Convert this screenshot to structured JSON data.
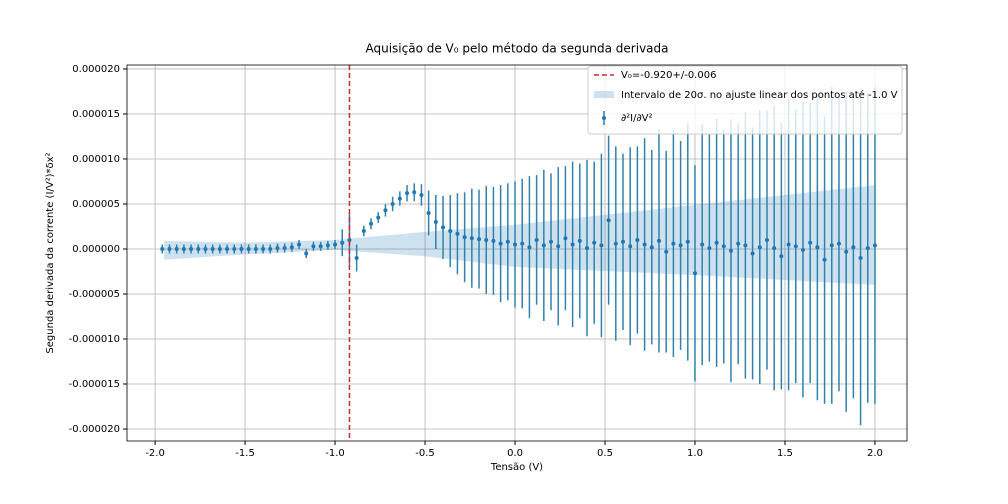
{
  "chart_data": {
    "type": "errorbar",
    "title": "Aquisição de V₀ pelo método da segunda derivada",
    "xlabel": "Tensão (V)",
    "ylabel": "Segunda derivada da corrente (I/V²)*δx²",
    "x": [
      -1.96,
      -1.92,
      -1.88,
      -1.84,
      -1.8,
      -1.76,
      -1.72,
      -1.68,
      -1.64,
      -1.6,
      -1.56,
      -1.52,
      -1.48,
      -1.44,
      -1.4,
      -1.36,
      -1.32,
      -1.28,
      -1.24,
      -1.2,
      -1.16,
      -1.12,
      -1.08,
      -1.04,
      -1.0,
      -0.96,
      -0.92,
      -0.88,
      -0.84,
      -0.8,
      -0.76,
      -0.72,
      -0.68,
      -0.64,
      -0.6,
      -0.56,
      -0.52,
      -0.48,
      -0.44,
      -0.4,
      -0.36,
      -0.32,
      -0.28,
      -0.24,
      -0.2,
      -0.16,
      -0.12,
      -0.08,
      -0.04,
      0.0,
      0.04,
      0.08,
      0.12,
      0.16,
      0.2,
      0.24,
      0.28,
      0.32,
      0.36,
      0.4,
      0.44,
      0.48,
      0.52,
      0.56,
      0.6,
      0.64,
      0.68,
      0.72,
      0.76,
      0.8,
      0.84,
      0.88,
      0.92,
      0.96,
      1.0,
      1.04,
      1.08,
      1.12,
      1.16,
      1.2,
      1.24,
      1.28,
      1.32,
      1.36,
      1.4,
      1.44,
      1.48,
      1.52,
      1.56,
      1.6,
      1.64,
      1.68,
      1.72,
      1.76,
      1.8,
      1.84,
      1.88,
      1.92,
      1.96,
      2.0
    ],
    "series": [
      {
        "name": "∂²I/∂V²",
        "color": "#1f77b4",
        "errcolor": "#2f82ad",
        "values": [
          0,
          0,
          0,
          0,
          0,
          0,
          0,
          0,
          0,
          0,
          0,
          0,
          0,
          0,
          0,
          0,
          1e-07,
          1e-07,
          2e-07,
          5e-07,
          -5e-07,
          3e-07,
          3e-07,
          4e-07,
          5e-07,
          7e-07,
          1e-06,
          -1e-06,
          2e-06,
          2.8e-06,
          3.5e-06,
          4.3e-06,
          5e-06,
          5.6e-06,
          6.2e-06,
          6.3e-06,
          6e-06,
          4e-06,
          3e-06,
          2.4e-06,
          2e-06,
          1.7e-06,
          1.3e-06,
          1.2e-06,
          1.1e-06,
          1e-06,
          9e-07,
          6e-07,
          8e-07,
          5e-07,
          6e-07,
          2e-07,
          1e-06,
          4e-07,
          8e-07,
          3e-07,
          1.2e-06,
          5e-07,
          9e-07,
          1e-07,
          7e-07,
          4e-07,
          3.2e-06,
          6e-07,
          8e-07,
          3e-07,
          1e-06,
          5e-07,
          2e-07,
          9e-07,
          -3e-07,
          6e-07,
          4e-07,
          8e-07,
          -2.7e-06,
          5e-07,
          1e-07,
          7e-07,
          3e-07,
          -2e-07,
          6e-07,
          4e-07,
          -5e-07,
          2e-07,
          1e-06,
          1e-07,
          -8e-07,
          5e-07,
          3e-07,
          -1e-07,
          7e-07,
          2e-07,
          -1.2e-06,
          4e-07,
          6e-07,
          -3e-07,
          2e-07,
          -1e-06,
          1e-07,
          4e-07
        ],
        "errors": [
          5e-07,
          5e-07,
          5e-07,
          5e-07,
          5e-07,
          5e-07,
          5e-07,
          5e-07,
          5e-07,
          5e-07,
          5e-07,
          5e-07,
          5e-07,
          5e-07,
          5e-07,
          5e-07,
          5e-07,
          5e-07,
          5e-07,
          5e-07,
          5e-07,
          5e-07,
          5e-07,
          5e-07,
          5e-07,
          1.5e-06,
          3e-06,
          1.5e-06,
          6e-07,
          6e-07,
          6e-07,
          7e-07,
          8e-07,
          8e-07,
          9e-07,
          1e-06,
          1.2e-06,
          2.5e-06,
          3e-06,
          3.5e-06,
          4e-06,
          4.5e-06,
          5e-06,
          5.5e-06,
          5.5e-06,
          6e-06,
          6e-06,
          6.5e-06,
          6.5e-06,
          7e-06,
          7.2e-06,
          7.9e-06,
          7.2e-06,
          8.4e-06,
          7.6e-06,
          8.8e-06,
          8e-06,
          9.2e-06,
          8.6e-06,
          9.8e-06,
          9e-06,
          1.02e-05,
          9.4e-06,
          1.08e-05,
          9.8e-06,
          1.1e-05,
          1.04e-05,
          1.18e-05,
          1.08e-05,
          1.24e-05,
          1.12e-05,
          1.26e-05,
          1.16e-05,
          1.32e-05,
          1.2e-05,
          1.34e-05,
          1.26e-05,
          1.38e-05,
          1.3e-05,
          1.46e-05,
          1.34e-05,
          1.48e-05,
          1.4e-05,
          1.52e-05,
          1.44e-05,
          1.58e-05,
          1.48e-05,
          1.62e-05,
          1.52e-05,
          1.64e-05,
          1.56e-05,
          1.7e-05,
          1.6e-05,
          1.76e-05,
          1.64e-05,
          1.78e-05,
          1.68e-05,
          1.86e-05,
          1.72e-05,
          1.76e-05
        ]
      }
    ],
    "band": {
      "name": "Intervalo de 20σ. no ajuste linear dos pontos até -1.0 V",
      "color": "#1f77b4",
      "x": [
        -1.95,
        -1.5,
        -1.0,
        -0.5,
        0.0,
        1.0,
        2.0
      ],
      "lower": [
        -1.2e-06,
        -6e-07,
        -1e-07,
        -8e-07,
        -2e-06,
        -2.9e-06,
        -4e-06
      ],
      "upper": [
        9e-07,
        7e-07,
        1e-06,
        1.9e-06,
        2.7e-06,
        4.9e-06,
        7.1e-06
      ]
    },
    "vline": {
      "name": "V₀=-0.920+/-0.006",
      "x": -0.92,
      "color": "#d62728"
    },
    "xlim": [
      -2.156,
      2.178
    ],
    "ylim": [
      -2.133e-05,
      2.044e-05
    ],
    "xticks": [
      {
        "value": -2,
        "label": "-2.0"
      },
      -1.5,
      {
        "value": -1,
        "label": "-1.0"
      },
      -0.5,
      {
        "value": 0,
        "label": "0.0"
      },
      0.5,
      {
        "value": 1,
        "label": "1.0"
      },
      1.5,
      {
        "value": 2,
        "label": "2.0"
      }
    ],
    "yticks": [
      {
        "value": -2e-05,
        "label": "-0.000020"
      },
      {
        "value": -1.5e-05,
        "label": "-0.000015"
      },
      {
        "value": -1e-05,
        "label": "-0.000010"
      },
      {
        "value": -5e-06,
        "label": "-0.000005"
      },
      {
        "value": 0,
        "label": "0.000000"
      },
      {
        "value": 5e-06,
        "label": "0.000005"
      },
      {
        "value": 1e-05,
        "label": "0.000010"
      },
      {
        "value": 1.5e-05,
        "label": "0.000015"
      },
      {
        "value": 2e-05,
        "label": "0.000020"
      }
    ],
    "grid": true,
    "legend": "upper right"
  }
}
